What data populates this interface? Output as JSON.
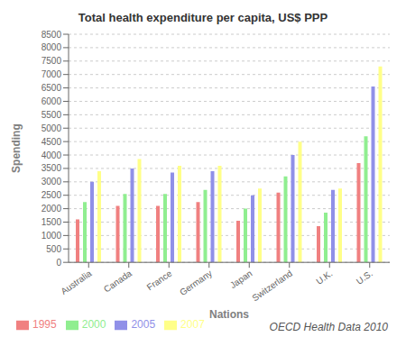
{
  "chart_data": {
    "type": "bar",
    "title": "Total health expenditure per capita, US$ PPP",
    "x_label": "Nations",
    "y_label": "Spending",
    "categories": [
      "Australia",
      "Canada",
      "France",
      "Germany",
      "Japan",
      "Switzerland",
      "U.K.",
      "U.S."
    ],
    "series": [
      {
        "name": "1995",
        "color": "#F08080",
        "values": [
          1600,
          2100,
          2100,
          2250,
          1550,
          2600,
          1350,
          3700
        ]
      },
      {
        "name": "2000",
        "color": "#90EE90",
        "values": [
          2250,
          2550,
          2550,
          2700,
          2000,
          3200,
          1850,
          4700
        ]
      },
      {
        "name": "2005",
        "color": "#9090E8",
        "values": [
          3000,
          3500,
          3350,
          3400,
          2500,
          4000,
          2700,
          6550
        ]
      },
      {
        "name": "2007",
        "color": "#FFFF88",
        "values": [
          3400,
          3850,
          3600,
          3600,
          2750,
          4500,
          2750,
          7300
        ]
      }
    ],
    "ylim": [
      0,
      8500
    ],
    "yticks": [
      0,
      500,
      1000,
      1500,
      2000,
      2500,
      3000,
      3500,
      4000,
      4500,
      5000,
      5500,
      6000,
      6500,
      7000,
      7500,
      8000,
      8500
    ],
    "grid": true,
    "legend": "lower left",
    "annotation": "OECD Health Data 2010"
  }
}
